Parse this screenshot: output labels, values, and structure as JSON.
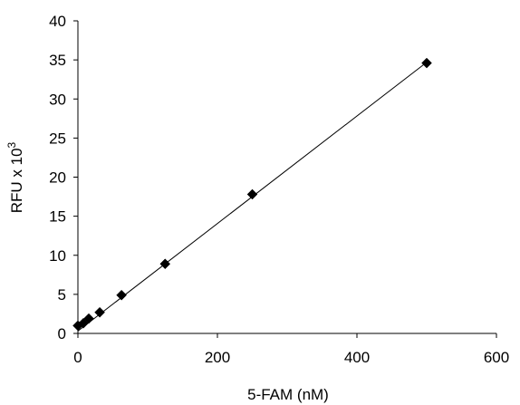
{
  "chart_data": {
    "type": "scatter",
    "xlabel": "5-FAM (nM)",
    "ylabel": "RFU x 10",
    "ylabel_superscript": "3",
    "xlim": [
      0,
      600
    ],
    "ylim": [
      0,
      40
    ],
    "x_ticks": [
      "0",
      "200",
      "400",
      "600"
    ],
    "y_ticks": [
      "0",
      "5",
      "10",
      "15",
      "20",
      "25",
      "30",
      "35",
      "40"
    ],
    "grid": false,
    "legend": "none",
    "series": [
      {
        "marker": "diamond",
        "color": "#000000",
        "points": [
          {
            "x": 0,
            "y": 1.0
          },
          {
            "x": 7.8,
            "y": 1.3
          },
          {
            "x": 15.6,
            "y": 1.9
          },
          {
            "x": 31.25,
            "y": 2.7
          },
          {
            "x": 62.5,
            "y": 4.9
          },
          {
            "x": 125,
            "y": 8.9
          },
          {
            "x": 250,
            "y": 17.8
          },
          {
            "x": 500,
            "y": 34.6
          }
        ]
      }
    ],
    "trendline": {
      "type": "linear",
      "color": "#000000",
      "x_from": 0,
      "x_to": 500,
      "slope": 0.0688,
      "intercept": 0.3
    }
  }
}
